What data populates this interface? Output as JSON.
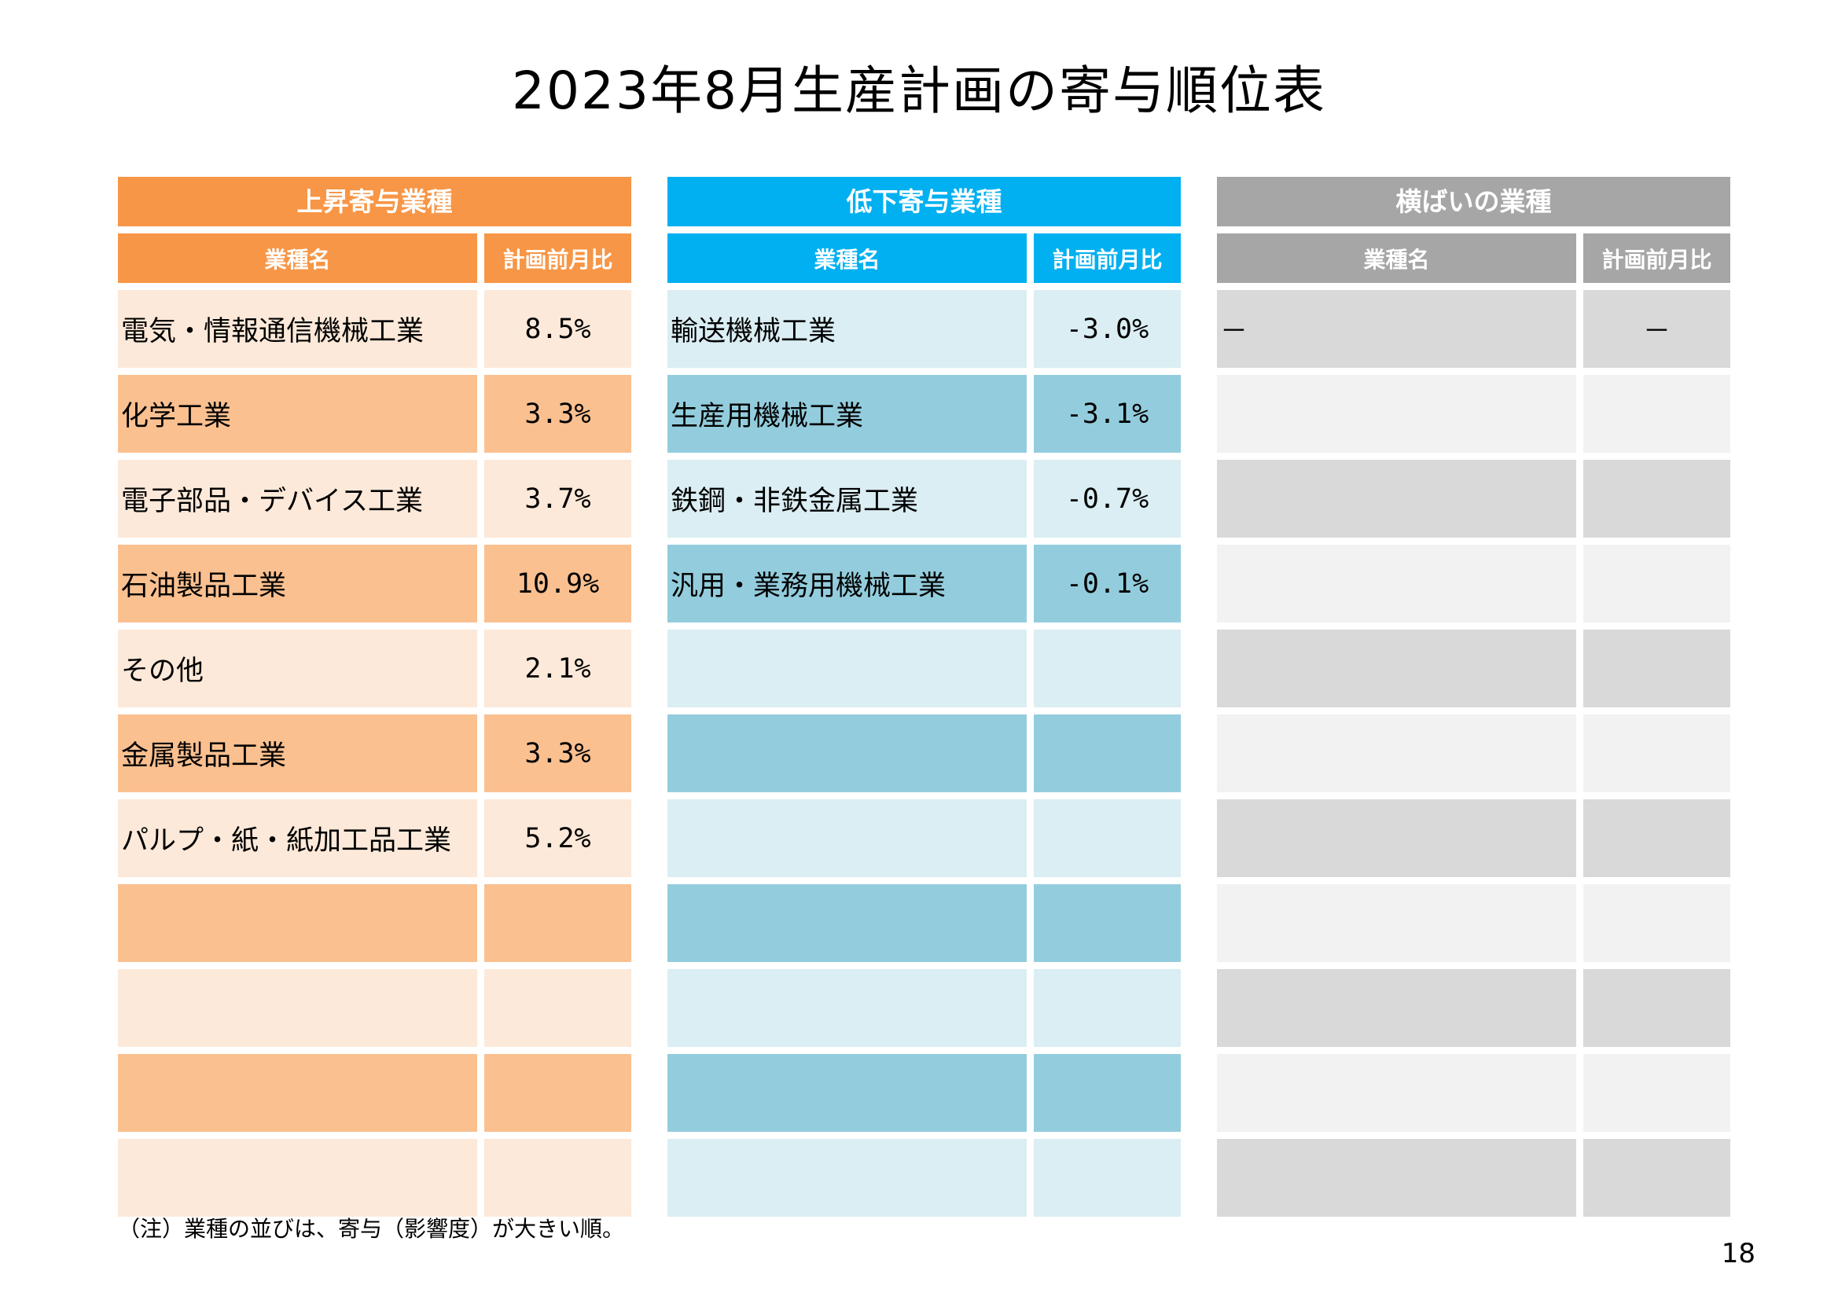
{
  "title": "2023年8月生産計画の寄与順位表",
  "panels": {
    "rise": {
      "header": "上昇寄与業種",
      "col_name": "業種名",
      "col_value": "計画前月比",
      "rows": [
        {
          "name": "電気・情報通信機械工業",
          "value": "8.5%"
        },
        {
          "name": "化学工業",
          "value": "3.3%"
        },
        {
          "name": "電子部品・デバイス工業",
          "value": "3.7%"
        },
        {
          "name": "石油製品工業",
          "value": "10.9%"
        },
        {
          "name": "その他",
          "value": "2.1%"
        },
        {
          "name": "金属製品工業",
          "value": "3.3%"
        },
        {
          "name": "パルプ・紙・紙加工品工業",
          "value": "5.2%"
        },
        {
          "name": "",
          "value": ""
        },
        {
          "name": "",
          "value": ""
        },
        {
          "name": "",
          "value": ""
        },
        {
          "name": "",
          "value": ""
        }
      ]
    },
    "fall": {
      "header": "低下寄与業種",
      "col_name": "業種名",
      "col_value": "計画前月比",
      "rows": [
        {
          "name": "輸送機械工業",
          "value": "-3.0%"
        },
        {
          "name": "生産用機械工業",
          "value": "-3.1%"
        },
        {
          "name": "鉄鋼・非鉄金属工業",
          "value": "-0.7%"
        },
        {
          "name": "汎用・業務用機械工業",
          "value": "-0.1%"
        },
        {
          "name": "",
          "value": ""
        },
        {
          "name": "",
          "value": ""
        },
        {
          "name": "",
          "value": ""
        },
        {
          "name": "",
          "value": ""
        },
        {
          "name": "",
          "value": ""
        },
        {
          "name": "",
          "value": ""
        },
        {
          "name": "",
          "value": ""
        }
      ]
    },
    "flat": {
      "header": "横ばいの業種",
      "col_name": "業種名",
      "col_value": "計画前月比",
      "rows": [
        {
          "name": "－",
          "value": "－"
        },
        {
          "name": "",
          "value": ""
        },
        {
          "name": "",
          "value": ""
        },
        {
          "name": "",
          "value": ""
        },
        {
          "name": "",
          "value": ""
        },
        {
          "name": "",
          "value": ""
        },
        {
          "name": "",
          "value": ""
        },
        {
          "name": "",
          "value": ""
        },
        {
          "name": "",
          "value": ""
        },
        {
          "name": "",
          "value": ""
        },
        {
          "name": "",
          "value": ""
        }
      ]
    }
  },
  "note": "（注）業種の並びは、寄与（影響度）が大きい順。",
  "page_number": "18",
  "colors": {
    "rise_header": "#f79646",
    "rise_light": "#fde9d9",
    "rise_dark": "#fac090",
    "fall_header": "#00b0f0",
    "fall_light": "#daeef3",
    "fall_dark": "#93cddd",
    "flat_header": "#a6a6a6",
    "flat_light": "#d9d9d9",
    "flat_dark": "#f2f2f2"
  }
}
